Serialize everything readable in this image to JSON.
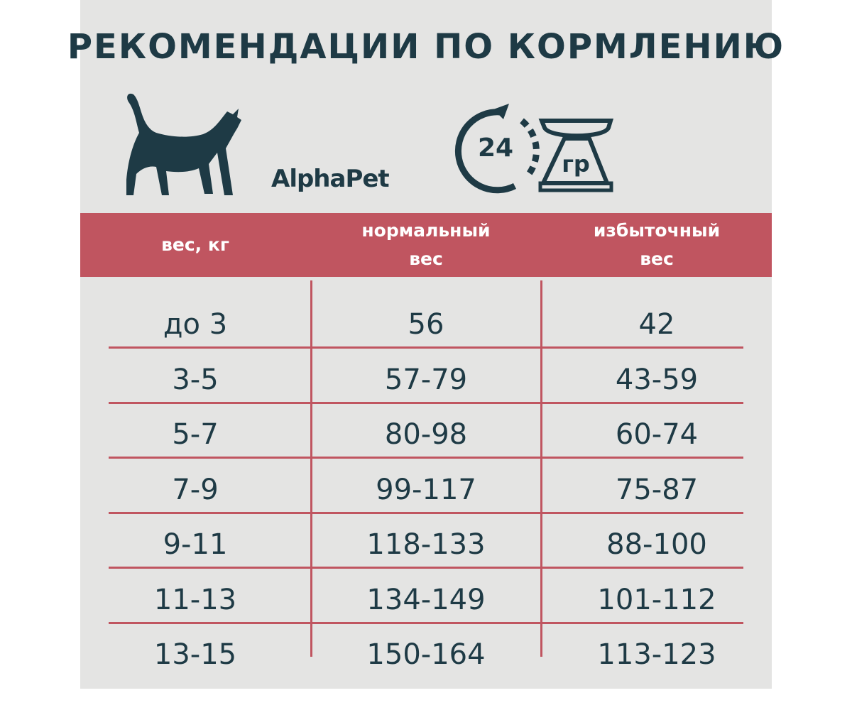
{
  "header": {
    "title": "РЕКОМЕНДАЦИИ ПО КОРМЛЕНИЮ",
    "brand": "AlphaPet",
    "icon_hours": "24",
    "icon_unit": "гр"
  },
  "table": {
    "columns": [
      "вес, кг",
      "нормальный вес",
      "избыточный вес"
    ],
    "rows": [
      [
        "до 3",
        "56",
        "42"
      ],
      [
        "3-5",
        "57-79",
        "43-59"
      ],
      [
        "5-7",
        "80-98",
        "60-74"
      ],
      [
        "7-9",
        "99-117",
        "75-87"
      ],
      [
        "9-11",
        "118-133",
        "88-100"
      ],
      [
        "11-13",
        "134-149",
        "101-112"
      ],
      [
        "13-15",
        "150-164",
        "113-123"
      ]
    ]
  }
}
